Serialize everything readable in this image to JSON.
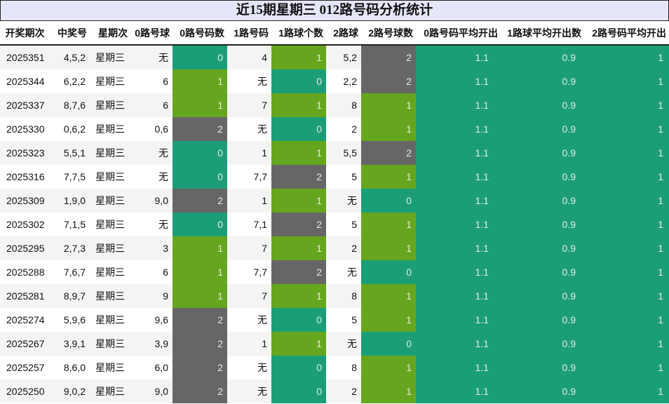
{
  "title": "近15期星期三 012路号码分析统计",
  "headers": [
    "开奖期次",
    "中奖号",
    "星期次",
    "0路号球",
    "0路号码数",
    "1路号码",
    "1路球个数",
    "2路球",
    "2路号球数",
    "0路号码平均开出",
    "1路球平均开出数",
    "2路号码平均开出"
  ],
  "colors": {
    "count_0": "#1b9e77",
    "count_1": "#66a61e",
    "count_2": "#666666",
    "title_bg": "#e6e6fa"
  },
  "rows": [
    {
      "issue": "2025351",
      "nums": "4,5,2",
      "weekday": "星期三",
      "r0": "无",
      "c0": "0",
      "r1": "4",
      "c1": "1",
      "r2": "5,2",
      "c2": "2",
      "a0": "1.1",
      "a1": "0.9",
      "a2": "1"
    },
    {
      "issue": "2025344",
      "nums": "6,2,2",
      "weekday": "星期三",
      "r0": "6",
      "c0": "1",
      "r1": "无",
      "c1": "0",
      "r2": "2,2",
      "c2": "2",
      "a0": "1.1",
      "a1": "0.9",
      "a2": "1"
    },
    {
      "issue": "2025337",
      "nums": "8,7,6",
      "weekday": "星期三",
      "r0": "6",
      "c0": "1",
      "r1": "7",
      "c1": "1",
      "r2": "8",
      "c2": "1",
      "a0": "1.1",
      "a1": "0.9",
      "a2": "1"
    },
    {
      "issue": "2025330",
      "nums": "0,6,2",
      "weekday": "星期三",
      "r0": "0,6",
      "c0": "2",
      "r1": "无",
      "c1": "0",
      "r2": "2",
      "c2": "1",
      "a0": "1.1",
      "a1": "0.9",
      "a2": "1"
    },
    {
      "issue": "2025323",
      "nums": "5,5,1",
      "weekday": "星期三",
      "r0": "无",
      "c0": "0",
      "r1": "1",
      "c1": "1",
      "r2": "5,5",
      "c2": "2",
      "a0": "1.1",
      "a1": "0.9",
      "a2": "1"
    },
    {
      "issue": "2025316",
      "nums": "7,7,5",
      "weekday": "星期三",
      "r0": "无",
      "c0": "0",
      "r1": "7,7",
      "c1": "2",
      "r2": "5",
      "c2": "1",
      "a0": "1.1",
      "a1": "0.9",
      "a2": "1"
    },
    {
      "issue": "2025309",
      "nums": "1,9,0",
      "weekday": "星期三",
      "r0": "9,0",
      "c0": "2",
      "r1": "1",
      "c1": "1",
      "r2": "无",
      "c2": "0",
      "a0": "1.1",
      "a1": "0.9",
      "a2": "1"
    },
    {
      "issue": "2025302",
      "nums": "7,1,5",
      "weekday": "星期三",
      "r0": "无",
      "c0": "0",
      "r1": "7,1",
      "c1": "2",
      "r2": "5",
      "c2": "1",
      "a0": "1.1",
      "a1": "0.9",
      "a2": "1"
    },
    {
      "issue": "2025295",
      "nums": "2,7,3",
      "weekday": "星期三",
      "r0": "3",
      "c0": "1",
      "r1": "7",
      "c1": "1",
      "r2": "2",
      "c2": "1",
      "a0": "1.1",
      "a1": "0.9",
      "a2": "1"
    },
    {
      "issue": "2025288",
      "nums": "7,6,7",
      "weekday": "星期三",
      "r0": "6",
      "c0": "1",
      "r1": "7,7",
      "c1": "2",
      "r2": "无",
      "c2": "0",
      "a0": "1.1",
      "a1": "0.9",
      "a2": "1"
    },
    {
      "issue": "2025281",
      "nums": "8,9,7",
      "weekday": "星期三",
      "r0": "9",
      "c0": "1",
      "r1": "7",
      "c1": "1",
      "r2": "8",
      "c2": "1",
      "a0": "1.1",
      "a1": "0.9",
      "a2": "1"
    },
    {
      "issue": "2025274",
      "nums": "5,9,6",
      "weekday": "星期三",
      "r0": "9,6",
      "c0": "2",
      "r1": "无",
      "c1": "0",
      "r2": "5",
      "c2": "1",
      "a0": "1.1",
      "a1": "0.9",
      "a2": "1"
    },
    {
      "issue": "2025267",
      "nums": "3,9,1",
      "weekday": "星期三",
      "r0": "3,9",
      "c0": "2",
      "r1": "1",
      "c1": "1",
      "r2": "无",
      "c2": "0",
      "a0": "1.1",
      "a1": "0.9",
      "a2": "1"
    },
    {
      "issue": "2025257",
      "nums": "8,6,0",
      "weekday": "星期三",
      "r0": "6,0",
      "c0": "2",
      "r1": "无",
      "c1": "0",
      "r2": "8",
      "c2": "1",
      "a0": "1.1",
      "a1": "0.9",
      "a2": "1"
    },
    {
      "issue": "2025250",
      "nums": "9,0,2",
      "weekday": "星期三",
      "r0": "9,0",
      "c0": "2",
      "r1": "无",
      "c1": "0",
      "r2": "2",
      "c2": "1",
      "a0": "1.1",
      "a1": "0.9",
      "a2": "1"
    }
  ]
}
